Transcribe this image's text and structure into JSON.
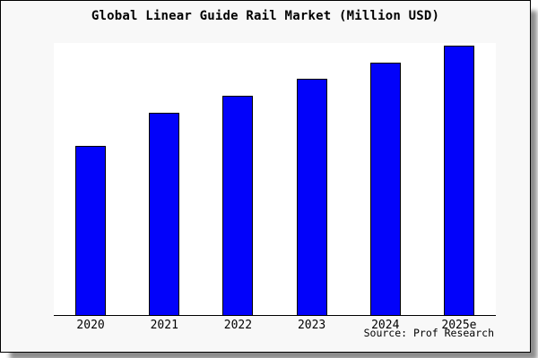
{
  "chart_data": {
    "type": "bar",
    "title": "Global Linear Guide Rail Market (Million USD)",
    "categories": [
      "2020",
      "2021",
      "2022",
      "2023",
      "2024",
      "2025e"
    ],
    "values": [
      62.2,
      74.3,
      80.6,
      86.8,
      92.8,
      99.0
    ],
    "value_scale": "relative bar height, % of plot height (no numeric y-axis shown)",
    "xlabel": "",
    "ylabel": "",
    "legend": "none",
    "grid": false,
    "bar_color": "#0202fa",
    "bar_border_color": "#000000"
  },
  "footer": {
    "source_label": "Source: Prof Research"
  },
  "colors": {
    "frame_background": "#f8f8f8",
    "plot_background": "#ffffff",
    "frame_border": "#000000",
    "text": "#000000"
  }
}
